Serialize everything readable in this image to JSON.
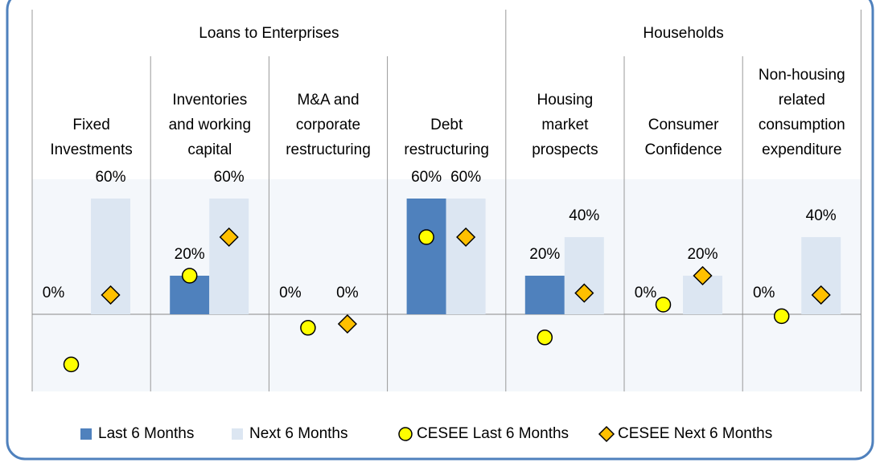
{
  "chart_data": {
    "type": "bar",
    "groups": [
      {
        "label": "Loans to Enterprises",
        "size": 4
      },
      {
        "label": "Households",
        "size": 3
      }
    ],
    "categories": [
      "Fixed\nInvestments",
      "Inventories\nand working\ncapital",
      "M&A and\ncorporate\nrestructuring",
      "Debt\nrestructuring",
      "Housing\nmarket\nprospects",
      "Consumer\nConfidence",
      "Non-housing\nrelated\nconsumption\nexpenditure"
    ],
    "series": [
      {
        "name": "Last 6 Months",
        "color": "#4f81bd",
        "marker": "bar",
        "values": [
          0,
          20,
          0,
          60,
          20,
          0,
          0
        ],
        "value_labels": [
          "0%",
          "20%",
          "0%",
          "60%",
          "20%",
          "0%",
          "0%"
        ]
      },
      {
        "name": "Next 6 Months",
        "color": "#dce6f2",
        "marker": "bar",
        "values": [
          60,
          60,
          0,
          60,
          40,
          20,
          40
        ],
        "value_labels": [
          "60%",
          "60%",
          "0%",
          "60%",
          "40%",
          "20%",
          "40%"
        ]
      },
      {
        "name": "CESEE Last 6 Months",
        "color": "#ffff00",
        "marker": "circle",
        "values": [
          -26,
          20,
          -7,
          40,
          -12,
          5,
          -1
        ]
      },
      {
        "name": "CESEE Next 6 Months",
        "color": "#ffc000",
        "marker": "diamond",
        "values": [
          10,
          40,
          -5,
          40,
          11,
          20,
          10
        ]
      }
    ],
    "ylim": [
      -40,
      70
    ]
  }
}
